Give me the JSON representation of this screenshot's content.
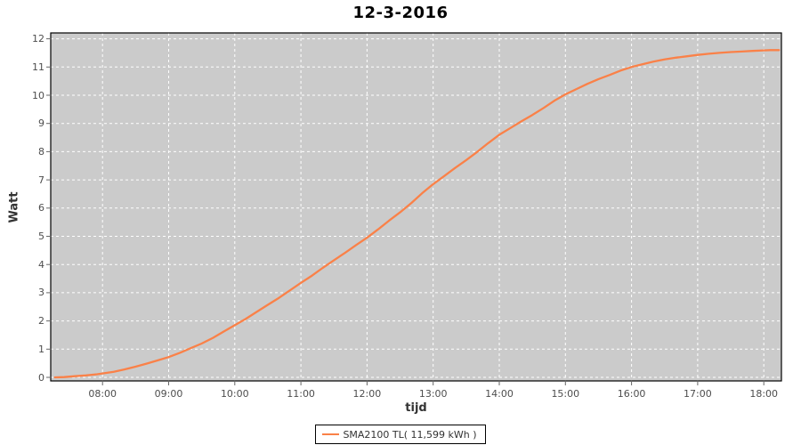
{
  "chart_data": {
    "type": "line",
    "title": "12-3-2016",
    "xlabel": "tijd",
    "ylabel": "Watt",
    "ylim": [
      0,
      12
    ],
    "xlim_hours": [
      7.2167,
      18.2667
    ],
    "grid": "white dashed on gray plot background",
    "x_tick_labels": [
      "08:00",
      "09:00",
      "10:00",
      "11:00",
      "12:00",
      "13:00",
      "14:00",
      "15:00",
      "16:00",
      "17:00",
      "18:00"
    ],
    "x_tick_hours": [
      8,
      9,
      10,
      11,
      12,
      13,
      14,
      15,
      16,
      17,
      18
    ],
    "y_tick_labels": [
      "0",
      "1",
      "2",
      "3",
      "4",
      "5",
      "6",
      "7",
      "8",
      "9",
      "10",
      "11",
      "12"
    ],
    "y_tick_values": [
      0,
      1,
      2,
      3,
      4,
      5,
      6,
      7,
      8,
      9,
      10,
      11,
      12
    ],
    "legend": {
      "position": "bottom-center"
    },
    "colors": {
      "plot_bg": "#cbcbcb",
      "grid": "#ffffff",
      "axis_border": "#000000",
      "tick_text": "#4d4d4d",
      "series": "#fa8148"
    },
    "series": [
      {
        "name": "SMA2100 TL( 11,599 kWh )",
        "color": "#fa8148",
        "total_kwh_label": "11,599 kWh",
        "points": [
          [
            7.28,
            0.0
          ],
          [
            7.42,
            0.01
          ],
          [
            7.58,
            0.04
          ],
          [
            7.75,
            0.07
          ],
          [
            7.92,
            0.11
          ],
          [
            8.0,
            0.14
          ],
          [
            8.17,
            0.2
          ],
          [
            8.33,
            0.28
          ],
          [
            8.5,
            0.38
          ],
          [
            8.67,
            0.49
          ],
          [
            8.83,
            0.6
          ],
          [
            9.0,
            0.72
          ],
          [
            9.17,
            0.87
          ],
          [
            9.33,
            1.03
          ],
          [
            9.5,
            1.2
          ],
          [
            9.67,
            1.4
          ],
          [
            9.83,
            1.62
          ],
          [
            10.0,
            1.85
          ],
          [
            10.17,
            2.08
          ],
          [
            10.33,
            2.32
          ],
          [
            10.5,
            2.57
          ],
          [
            10.67,
            2.82
          ],
          [
            10.83,
            3.08
          ],
          [
            11.0,
            3.35
          ],
          [
            11.17,
            3.61
          ],
          [
            11.33,
            3.88
          ],
          [
            11.5,
            4.15
          ],
          [
            11.67,
            4.42
          ],
          [
            11.83,
            4.68
          ],
          [
            12.0,
            4.95
          ],
          [
            12.17,
            5.25
          ],
          [
            12.33,
            5.55
          ],
          [
            12.5,
            5.85
          ],
          [
            12.67,
            6.18
          ],
          [
            12.83,
            6.52
          ],
          [
            13.0,
            6.85
          ],
          [
            13.17,
            7.14
          ],
          [
            13.33,
            7.42
          ],
          [
            13.5,
            7.7
          ],
          [
            13.67,
            8.0
          ],
          [
            13.83,
            8.3
          ],
          [
            14.0,
            8.6
          ],
          [
            14.17,
            8.84
          ],
          [
            14.33,
            9.07
          ],
          [
            14.5,
            9.3
          ],
          [
            14.67,
            9.55
          ],
          [
            14.83,
            9.8
          ],
          [
            15.0,
            10.03
          ],
          [
            15.17,
            10.22
          ],
          [
            15.33,
            10.4
          ],
          [
            15.5,
            10.57
          ],
          [
            15.67,
            10.72
          ],
          [
            15.83,
            10.87
          ],
          [
            16.0,
            11.0
          ],
          [
            16.17,
            11.1
          ],
          [
            16.33,
            11.19
          ],
          [
            16.5,
            11.27
          ],
          [
            16.67,
            11.33
          ],
          [
            16.83,
            11.38
          ],
          [
            17.0,
            11.43
          ],
          [
            17.17,
            11.47
          ],
          [
            17.33,
            11.5
          ],
          [
            17.5,
            11.53
          ],
          [
            17.67,
            11.55
          ],
          [
            17.83,
            11.57
          ],
          [
            18.0,
            11.59
          ],
          [
            18.1,
            11.6
          ],
          [
            18.23,
            11.6
          ]
        ]
      }
    ]
  }
}
